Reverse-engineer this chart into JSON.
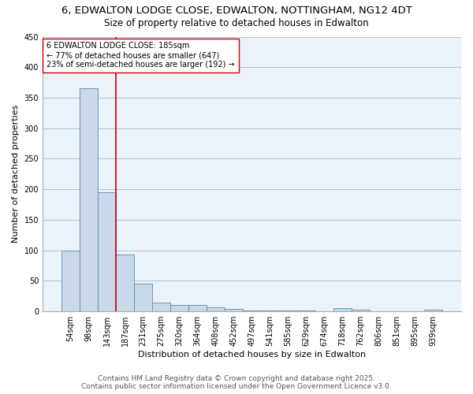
{
  "title_line1": "6, EDWALTON LODGE CLOSE, EDWALTON, NOTTINGHAM, NG12 4DT",
  "title_line2": "Size of property relative to detached houses in Edwalton",
  "xlabel": "Distribution of detached houses by size in Edwalton",
  "ylabel": "Number of detached properties",
  "categories": [
    "54sqm",
    "98sqm",
    "143sqm",
    "187sqm",
    "231sqm",
    "275sqm",
    "320sqm",
    "364sqm",
    "408sqm",
    "452sqm",
    "497sqm",
    "541sqm",
    "585sqm",
    "629sqm",
    "674sqm",
    "718sqm",
    "762sqm",
    "806sqm",
    "851sqm",
    "895sqm",
    "939sqm"
  ],
  "values": [
    99,
    365,
    195,
    93,
    45,
    14,
    11,
    10,
    6,
    4,
    2,
    1,
    1,
    1,
    0,
    5,
    3,
    0,
    0,
    0,
    3
  ],
  "bar_color": "#c8d8e8",
  "bar_edge_color": "#5a8db5",
  "vline_color": "#cc0000",
  "annotation_text": "6 EDWALTON LODGE CLOSE: 185sqm\n← 77% of detached houses are smaller (647)\n23% of semi-detached houses are larger (192) →",
  "annotation_box_color": "white",
  "annotation_box_edge_color": "#cc0000",
  "ylim": [
    0,
    450
  ],
  "yticks": [
    0,
    50,
    100,
    150,
    200,
    250,
    300,
    350,
    400,
    450
  ],
  "grid_color": "#b0c4d8",
  "bg_color": "#eaf2fa",
  "footer_line1": "Contains HM Land Registry data © Crown copyright and database right 2025.",
  "footer_line2": "Contains public sector information licensed under the Open Government Licence v3.0.",
  "title_fontsize": 9.5,
  "subtitle_fontsize": 8.5,
  "axis_label_fontsize": 8,
  "tick_fontsize": 7,
  "annotation_fontsize": 7,
  "footer_fontsize": 6.5
}
